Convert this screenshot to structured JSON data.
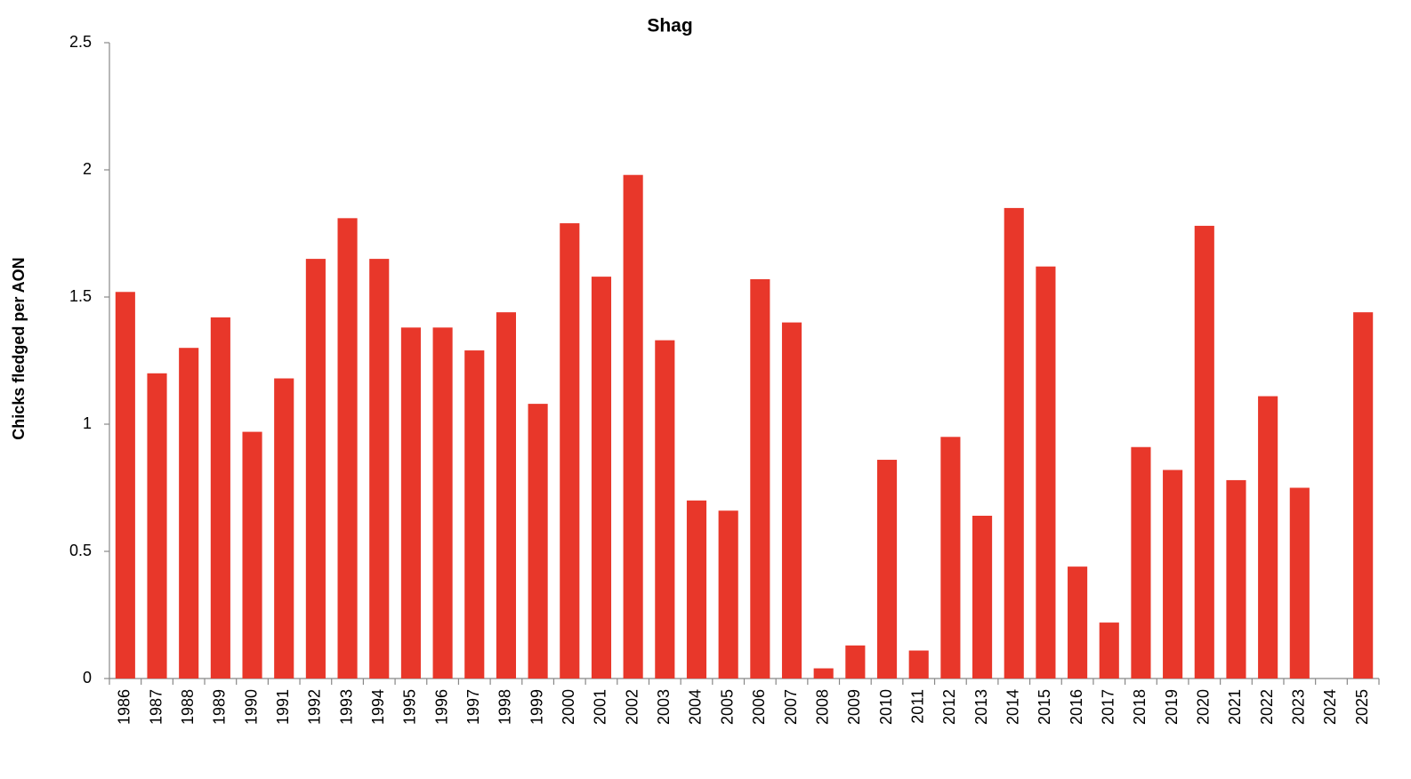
{
  "chart_data": {
    "type": "bar",
    "title": "Shag",
    "y_label": "Chicks fledged per AON",
    "categories": [
      "1986",
      "1987",
      "1988",
      "1989",
      "1990",
      "1991",
      "1992",
      "1993",
      "1994",
      "1995",
      "1996",
      "1997",
      "1998",
      "1999",
      "2000",
      "2001",
      "2002",
      "2003",
      "2004",
      "2005",
      "2006",
      "2007",
      "2008",
      "2009",
      "2010",
      "2011",
      "2012",
      "2013",
      "2014",
      "2015",
      "2016",
      "2017",
      "2018",
      "2019",
      "2020",
      "2021",
      "2022",
      "2023",
      "2024",
      "2025"
    ],
    "values": [
      1.52,
      1.2,
      1.3,
      1.42,
      0.97,
      1.18,
      1.65,
      1.81,
      1.65,
      1.38,
      1.38,
      1.29,
      1.44,
      1.08,
      1.79,
      1.58,
      1.98,
      1.33,
      0.7,
      0.66,
      1.57,
      1.4,
      0.04,
      0.13,
      0.86,
      0.11,
      0.95,
      0.64,
      1.85,
      1.62,
      0.44,
      0.22,
      0.91,
      0.82,
      1.78,
      0.78,
      1.11,
      0.75,
      null,
      1.44
    ],
    "color": "#e8372a",
    "ylim": [
      0,
      2.5
    ],
    "yticks": [
      0,
      0.5,
      1,
      1.5,
      2,
      2.5
    ],
    "grid": false
  }
}
